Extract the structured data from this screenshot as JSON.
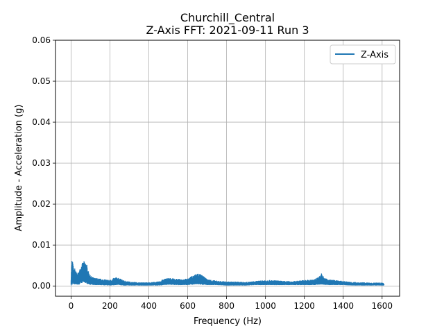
{
  "chart_data": {
    "type": "line",
    "title_line1": "Churchill_Central",
    "title_line2": "Z-Axis FFT: 2021-09-11 Run 3",
    "xlabel": "Frequency (Hz)",
    "ylabel": "Amplitude - Acceleration (g)",
    "xlim": [
      -80,
      1690
    ],
    "ylim": [
      -0.0025,
      0.06
    ],
    "x_ticks": [
      0,
      200,
      400,
      600,
      800,
      1000,
      1200,
      1400,
      1600
    ],
    "x_tick_labels": [
      "0",
      "200",
      "400",
      "600",
      "800",
      "1000",
      "1200",
      "1400",
      "1600"
    ],
    "y_ticks": [
      0.0,
      0.01,
      0.02,
      0.03,
      0.04,
      0.05,
      0.06
    ],
    "y_tick_labels": [
      "0.00",
      "0.01",
      "0.02",
      "0.03",
      "0.04",
      "0.05",
      "0.06"
    ],
    "grid": true,
    "legend": {
      "position": "top-right",
      "entries": [
        "Z-Axis"
      ]
    },
    "series": [
      {
        "name": "Z-Axis",
        "color": "#1f77b4",
        "envelope": {
          "x": [
            0,
            5,
            10,
            15,
            20,
            30,
            40,
            50,
            60,
            70,
            80,
            90,
            100,
            120,
            150,
            200,
            230,
            250,
            270,
            300,
            350,
            400,
            450,
            480,
            500,
            550,
            600,
            620,
            650,
            670,
            700,
            750,
            800,
            850,
            900,
            950,
            1000,
            1050,
            1100,
            1150,
            1200,
            1250,
            1280,
            1290,
            1300,
            1320,
            1350,
            1400,
            1450,
            1500,
            1550,
            1600,
            1610
          ],
          "max": [
            0.0025,
            0.0068,
            0.0055,
            0.004,
            0.0045,
            0.003,
            0.0035,
            0.005,
            0.0058,
            0.0062,
            0.0055,
            0.0035,
            0.0025,
            0.002,
            0.0018,
            0.0015,
            0.0022,
            0.0019,
            0.0014,
            0.0011,
            0.0009,
            0.0009,
            0.0011,
            0.0018,
            0.002,
            0.0017,
            0.0018,
            0.0024,
            0.0032,
            0.0028,
            0.0017,
            0.0013,
            0.0011,
            0.0011,
            0.001,
            0.0012,
            0.0015,
            0.0014,
            0.0012,
            0.0012,
            0.0015,
            0.0016,
            0.0025,
            0.0033,
            0.002,
            0.0017,
            0.0015,
            0.0012,
            0.001,
            0.0009,
            0.0008,
            0.0009,
            0.0007
          ],
          "min": [
            0.0,
            0.0003,
            0.0004,
            0.0003,
            0.0004,
            0.0003,
            0.0003,
            0.0006,
            0.0008,
            0.0008,
            0.0006,
            0.0004,
            0.0003,
            0.0002,
            0.0002,
            0.0001,
            0.0002,
            0.0002,
            0.0001,
            0.0001,
            0.0001,
            0.0001,
            0.0001,
            0.0002,
            0.0003,
            0.0002,
            0.0002,
            0.0003,
            0.0004,
            0.0003,
            0.0002,
            0.0002,
            0.0001,
            0.0001,
            0.0001,
            0.0002,
            0.0002,
            0.0002,
            0.0002,
            0.0002,
            0.0002,
            0.0002,
            0.0003,
            0.0004,
            0.0003,
            0.0002,
            0.0002,
            0.0002,
            0.0001,
            0.0001,
            0.0001,
            0.0001,
            0.0001
          ]
        }
      }
    ]
  }
}
